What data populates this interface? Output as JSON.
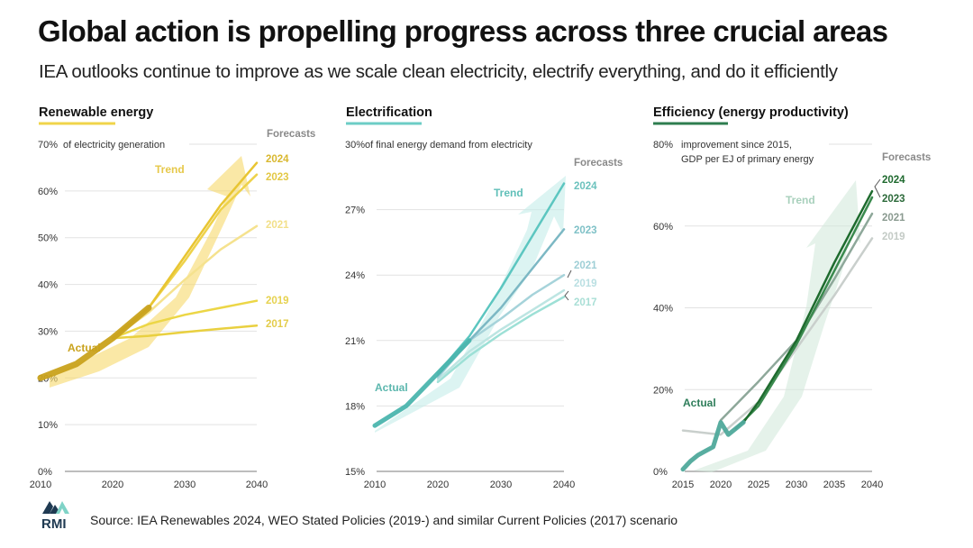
{
  "header": {
    "title": "Global action is propelling progress across three crucial areas",
    "subtitle": "IEA outlooks continue to improve as we scale clean electricity, electrify everything, and do it efficiently"
  },
  "footer": {
    "logo_text": "RMI",
    "source": "Source: IEA Renewables 2024, WEO Stated Policies (2019-) and similar Current Policies (2017) scenario"
  },
  "chart_data": [
    {
      "type": "line",
      "title": "Renewable energy",
      "accent": "#f0d44a",
      "ylabel": "70% of electricity generation",
      "ylabel_lines": [
        "of electricity generation"
      ],
      "ylim": [
        0,
        70
      ],
      "yticks": [
        0,
        10,
        20,
        30,
        40,
        50,
        60,
        70
      ],
      "ytick_labels": [
        "0%",
        "10%",
        "20%",
        "30%",
        "40%",
        "50%",
        "60%",
        "70%"
      ],
      "xlim": [
        2010,
        2040
      ],
      "xticks": [
        2010,
        2020,
        2030,
        2040
      ],
      "legend_title": "Forecasts",
      "trend_label": "Trend",
      "actual_label": "Actual",
      "trend_color": "#f7d86a",
      "actual": {
        "color": "#c9a21c",
        "x": [
          2010,
          2015,
          2020,
          2025
        ],
        "y": [
          20,
          23,
          28.5,
          35
        ]
      },
      "series": [
        {
          "name": "2024",
          "color": "#e8c532",
          "label_color": "#d9b830",
          "x": [
            2020,
            2025,
            2030,
            2035,
            2040
          ],
          "y": [
            28.5,
            35,
            46,
            57,
            66
          ]
        },
        {
          "name": "2023",
          "color": "#eed24a",
          "label_color": "#e3c845",
          "x": [
            2020,
            2025,
            2030,
            2035,
            2040
          ],
          "y": [
            28.5,
            35,
            45,
            56,
            63.5
          ]
        },
        {
          "name": "2021",
          "color": "#f5e28e",
          "label_color": "#f2e08a",
          "x": [
            2020,
            2025,
            2030,
            2035,
            2040
          ],
          "y": [
            28.5,
            34,
            41,
            47.5,
            52.5
          ]
        },
        {
          "name": "2019",
          "color": "#ecd646",
          "label_color": "#e6d250",
          "x": [
            2020,
            2025,
            2030,
            2035,
            2040
          ],
          "y": [
            28.5,
            31.5,
            33.5,
            35,
            36.5
          ]
        },
        {
          "name": "2017",
          "color": "#e9d040",
          "label_color": "#e3cc4a",
          "x": [
            2020,
            2025,
            2030,
            2035,
            2040
          ],
          "y": [
            28.5,
            29,
            29.8,
            30.5,
            31.2
          ]
        }
      ]
    },
    {
      "type": "line",
      "title": "Electrification",
      "accent": "#6ccdc6",
      "ylabel": "30% of final energy demand from electricity",
      "ylabel_lines": [
        "of final energy demand from electricity"
      ],
      "ylim": [
        15,
        30
      ],
      "yticks": [
        15,
        18,
        21,
        24,
        27,
        30
      ],
      "ytick_labels": [
        "15%",
        "18%",
        "21%",
        "24%",
        "27%",
        "30%"
      ],
      "xlim": [
        2010,
        2040
      ],
      "xticks": [
        2010,
        2020,
        2030,
        2040
      ],
      "legend_title": "Forecasts",
      "trend_label": "Trend",
      "actual_label": "Actual",
      "trend_color": "#c4ecea",
      "actual": {
        "color": "#4bb5ae",
        "x": [
          2010,
          2015,
          2020,
          2025
        ],
        "y": [
          17.1,
          18,
          19.5,
          21
        ]
      },
      "series": [
        {
          "name": "2024",
          "color": "#5cc6c0",
          "label_color": "#6cc2bd",
          "x": [
            2020,
            2025,
            2030,
            2035,
            2040
          ],
          "y": [
            19.5,
            21.2,
            23.4,
            25.8,
            28.2
          ]
        },
        {
          "name": "2023",
          "color": "#7cb8c4",
          "label_color": "#7fc1c7",
          "x": [
            2020,
            2025,
            2030,
            2035,
            2040
          ],
          "y": [
            19.4,
            21,
            22.5,
            24.3,
            26.1
          ]
        },
        {
          "name": "2021",
          "color": "#a6d3da",
          "label_color": "#9fcfd6",
          "x": [
            2020,
            2025,
            2030,
            2035,
            2040
          ],
          "y": [
            19.3,
            21,
            22,
            23.1,
            24
          ]
        },
        {
          "name": "2019",
          "color": "#bde5e2",
          "label_color": "#b9dfe2",
          "x": [
            2020,
            2025,
            2030,
            2035,
            2040
          ],
          "y": [
            19.2,
            20.5,
            21.5,
            22.4,
            23.3
          ]
        },
        {
          "name": "2017",
          "color": "#9de0d6",
          "label_color": "#a9dfd6",
          "x": [
            2020,
            2025,
            2030,
            2035,
            2040
          ],
          "y": [
            19.1,
            20.3,
            21.3,
            22.2,
            23.0
          ]
        }
      ]
    },
    {
      "type": "line",
      "title": "Efficiency (energy productivity)",
      "accent": "#2e7d4f",
      "ylabel": "80% improvement since 2015, GDP per EJ of primary energy",
      "ylabel_lines": [
        "improvement since 2015,",
        "GDP per EJ of primary energy"
      ],
      "ylim": [
        0,
        80
      ],
      "yticks": [
        0,
        20,
        40,
        60,
        80
      ],
      "ytick_labels": [
        "0%",
        "20%",
        "40%",
        "60%",
        "80%"
      ],
      "xlim": [
        2015,
        2040
      ],
      "xticks": [
        2015,
        2020,
        2025,
        2030,
        2035,
        2040
      ],
      "legend_title": "Forecasts",
      "trend_label": "Trend",
      "actual_label": "Actual",
      "trend_color": "#d3eadc",
      "actual": {
        "color": "#4fa99b",
        "x": [
          2015,
          2016,
          2017,
          2018,
          2019,
          2020,
          2021,
          2022,
          2023
        ],
        "y": [
          0.5,
          2.5,
          4,
          5,
          6,
          12,
          9,
          10.5,
          12
        ]
      },
      "series": [
        {
          "name": "2024",
          "color": "#1e6b2e",
          "label_color": "#1f6a2f",
          "x": [
            2023,
            2025,
            2030,
            2035,
            2040
          ],
          "y": [
            12,
            17,
            32,
            51,
            68.5
          ]
        },
        {
          "name": "2023",
          "color": "#3a8a4e",
          "label_color": "#2c6a3a",
          "x": [
            2022,
            2025,
            2030,
            2035,
            2040
          ],
          "y": [
            10.5,
            16,
            31,
            49,
            67
          ]
        },
        {
          "name": "2021",
          "color": "#8ea89a",
          "label_color": "#8a9a90",
          "x": [
            2020,
            2025,
            2030,
            2035,
            2040
          ],
          "y": [
            12.5,
            22,
            32,
            47,
            63
          ]
        },
        {
          "name": "2019",
          "color": "#c9cfcc",
          "label_color": "#c4cbc6",
          "x": [
            2015,
            2020,
            2025,
            2030,
            2035,
            2040
          ],
          "y": [
            10,
            9,
            17,
            30,
            43,
            57
          ]
        }
      ]
    }
  ]
}
